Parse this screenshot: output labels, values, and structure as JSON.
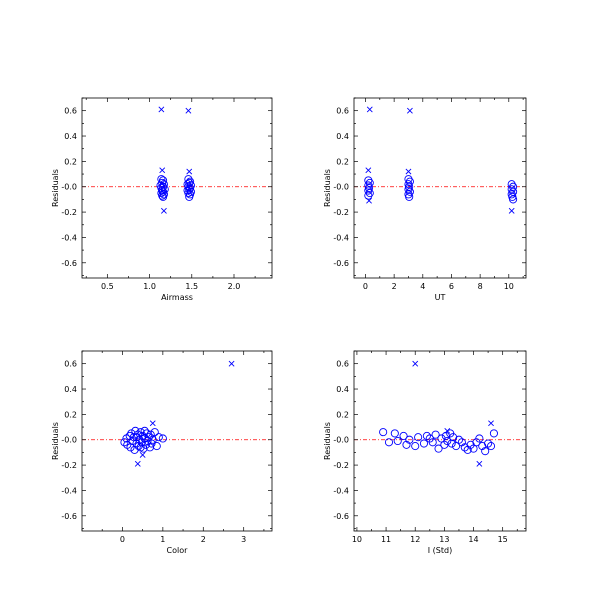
{
  "figure": {
    "background": "#ffffff",
    "marker_color": "#0000ff",
    "zero_line_color": "#ff0000"
  },
  "chart_data": [
    {
      "type": "scatter",
      "xlabel": "Airmass",
      "ylabel": "Residuals",
      "xlim": [
        0.2,
        2.45
      ],
      "ylim": [
        -0.72,
        0.7
      ],
      "xticks": [
        0.5,
        1.0,
        1.5,
        2.0
      ],
      "xtick_labels": [
        "0.5",
        "1.0",
        "1.5",
        "2.0"
      ],
      "yticks": [
        -0.6,
        -0.4,
        -0.2,
        0.0,
        0.2,
        0.4,
        0.6
      ],
      "ytick_labels": [
        "-0.6",
        "-0.4",
        "-0.2",
        "-0.0",
        "0.2",
        "0.4",
        "0.6"
      ],
      "zero_line": 0.0,
      "series": [
        {
          "marker": "circle",
          "points": [
            [
              1.14,
              0.06
            ],
            [
              1.16,
              0.05
            ],
            [
              1.15,
              0.03
            ],
            [
              1.17,
              0.02
            ],
            [
              1.13,
              0.01
            ],
            [
              1.16,
              0.0
            ],
            [
              1.14,
              -0.01
            ],
            [
              1.18,
              -0.02
            ],
            [
              1.15,
              -0.03
            ],
            [
              1.16,
              -0.04
            ],
            [
              1.14,
              -0.05
            ],
            [
              1.17,
              -0.06
            ],
            [
              1.15,
              -0.07
            ],
            [
              1.16,
              -0.08
            ],
            [
              1.46,
              0.06
            ],
            [
              1.48,
              0.04
            ],
            [
              1.47,
              0.03
            ],
            [
              1.45,
              0.02
            ],
            [
              1.49,
              0.01
            ],
            [
              1.46,
              0.0
            ],
            [
              1.48,
              -0.01
            ],
            [
              1.47,
              -0.02
            ],
            [
              1.45,
              -0.03
            ],
            [
              1.49,
              -0.04
            ],
            [
              1.46,
              -0.05
            ],
            [
              1.48,
              -0.06
            ],
            [
              1.47,
              -0.08
            ]
          ]
        },
        {
          "marker": "x",
          "points": [
            [
              1.14,
              0.61
            ],
            [
              1.46,
              0.6
            ],
            [
              1.15,
              0.13
            ],
            [
              1.17,
              -0.19
            ],
            [
              1.47,
              0.12
            ]
          ]
        }
      ]
    },
    {
      "type": "scatter",
      "xlabel": "UT",
      "ylabel": "Residuals",
      "xlim": [
        -0.8,
        11.2
      ],
      "ylim": [
        -0.72,
        0.7
      ],
      "xticks": [
        0,
        2,
        4,
        6,
        8,
        10
      ],
      "xtick_labels": [
        "0",
        "2",
        "4",
        "6",
        "8",
        "10"
      ],
      "yticks": [
        -0.6,
        -0.4,
        -0.2,
        0.0,
        0.2,
        0.4,
        0.6
      ],
      "ytick_labels": [
        "-0.6",
        "-0.4",
        "-0.2",
        "-0.0",
        "0.2",
        "0.4",
        "0.6"
      ],
      "zero_line": 0.0,
      "series": [
        {
          "marker": "circle",
          "points": [
            [
              0.2,
              0.05
            ],
            [
              0.3,
              0.03
            ],
            [
              0.2,
              0.01
            ],
            [
              0.25,
              -0.01
            ],
            [
              0.2,
              -0.03
            ],
            [
              0.3,
              -0.05
            ],
            [
              0.2,
              -0.07
            ],
            [
              3.0,
              0.06
            ],
            [
              3.1,
              0.04
            ],
            [
              3.0,
              0.02
            ],
            [
              3.05,
              0.0
            ],
            [
              3.0,
              -0.02
            ],
            [
              3.1,
              -0.04
            ],
            [
              3.0,
              -0.06
            ],
            [
              3.05,
              -0.08
            ],
            [
              10.2,
              0.02
            ],
            [
              10.3,
              0.0
            ],
            [
              10.2,
              -0.02
            ],
            [
              10.3,
              -0.04
            ],
            [
              10.2,
              -0.06
            ],
            [
              10.25,
              -0.08
            ],
            [
              10.3,
              -0.1
            ]
          ]
        },
        {
          "marker": "x",
          "points": [
            [
              0.3,
              0.61
            ],
            [
              3.1,
              0.6
            ],
            [
              0.2,
              0.13
            ],
            [
              3.0,
              0.12
            ],
            [
              10.2,
              -0.19
            ],
            [
              0.25,
              -0.11
            ]
          ]
        }
      ]
    },
    {
      "type": "scatter",
      "xlabel": "Color",
      "ylabel": "Residuals",
      "xlim": [
        -1.0,
        3.7
      ],
      "ylim": [
        -0.72,
        0.7
      ],
      "xticks": [
        0,
        1,
        2,
        3
      ],
      "xtick_labels": [
        "0",
        "1",
        "2",
        "3"
      ],
      "yticks": [
        -0.6,
        -0.4,
        -0.2,
        0.0,
        0.2,
        0.4,
        0.6
      ],
      "ytick_labels": [
        "-0.6",
        "-0.4",
        "-0.2",
        "-0.0",
        "0.2",
        "0.4",
        "0.6"
      ],
      "zero_line": 0.0,
      "series": [
        {
          "marker": "circle",
          "points": [
            [
              0.05,
              -0.02
            ],
            [
              0.1,
              0.01
            ],
            [
              0.12,
              -0.04
            ],
            [
              0.18,
              0.03
            ],
            [
              0.2,
              -0.06
            ],
            [
              0.22,
              0.05
            ],
            [
              0.25,
              -0.01
            ],
            [
              0.28,
              0.02
            ],
            [
              0.3,
              -0.08
            ],
            [
              0.32,
              0.07
            ],
            [
              0.35,
              -0.03
            ],
            [
              0.38,
              0.04
            ],
            [
              0.4,
              -0.05
            ],
            [
              0.42,
              0.0
            ],
            [
              0.45,
              0.06
            ],
            [
              0.48,
              -0.02
            ],
            [
              0.5,
              0.03
            ],
            [
              0.52,
              -0.07
            ],
            [
              0.55,
              0.01
            ],
            [
              0.58,
              -0.04
            ],
            [
              0.6,
              0.05
            ],
            [
              0.62,
              -0.01
            ],
            [
              0.65,
              0.02
            ],
            [
              0.68,
              -0.06
            ],
            [
              0.7,
              0.04
            ],
            [
              0.72,
              -0.03
            ],
            [
              0.75,
              0.0
            ],
            [
              0.8,
              0.06
            ],
            [
              0.85,
              -0.05
            ],
            [
              0.9,
              0.02
            ],
            [
              1.0,
              0.01
            ],
            [
              0.35,
              0.02
            ],
            [
              0.45,
              -0.06
            ],
            [
              0.55,
              0.07
            ]
          ]
        },
        {
          "marker": "x",
          "points": [
            [
              2.7,
              0.6
            ],
            [
              0.38,
              -0.19
            ],
            [
              0.75,
              0.13
            ],
            [
              0.5,
              -0.12
            ]
          ]
        }
      ]
    },
    {
      "type": "scatter",
      "xlabel": "I (Std)",
      "ylabel": "Residuals",
      "xlim": [
        9.9,
        15.8
      ],
      "ylim": [
        -0.72,
        0.7
      ],
      "xticks": [
        10,
        11,
        12,
        13,
        14,
        15
      ],
      "xtick_labels": [
        "10",
        "11",
        "12",
        "13",
        "14",
        "15"
      ],
      "yticks": [
        -0.6,
        -0.4,
        -0.2,
        0.0,
        0.2,
        0.4,
        0.6
      ],
      "ytick_labels": [
        "-0.6",
        "-0.4",
        "-0.2",
        "-0.0",
        "0.2",
        "0.4",
        "0.6"
      ],
      "zero_line": 0.0,
      "series": [
        {
          "marker": "circle",
          "points": [
            [
              10.9,
              0.06
            ],
            [
              11.1,
              -0.02
            ],
            [
              11.3,
              0.05
            ],
            [
              11.4,
              -0.01
            ],
            [
              11.6,
              0.03
            ],
            [
              11.7,
              -0.04
            ],
            [
              11.8,
              0.0
            ],
            [
              12.0,
              -0.05
            ],
            [
              12.1,
              0.02
            ],
            [
              12.3,
              -0.03
            ],
            [
              12.4,
              0.03
            ],
            [
              12.5,
              0.01
            ],
            [
              12.6,
              -0.02
            ],
            [
              12.7,
              0.04
            ],
            [
              12.8,
              -0.07
            ],
            [
              12.9,
              0.01
            ],
            [
              13.0,
              -0.04
            ],
            [
              13.05,
              0.03
            ],
            [
              13.1,
              -0.01
            ],
            [
              13.2,
              0.05
            ],
            [
              13.25,
              -0.03
            ],
            [
              13.3,
              0.02
            ],
            [
              13.4,
              -0.05
            ],
            [
              13.5,
              0.0
            ],
            [
              13.6,
              -0.02
            ],
            [
              13.7,
              -0.06
            ],
            [
              13.8,
              -0.08
            ],
            [
              13.9,
              -0.04
            ],
            [
              14.0,
              -0.07
            ],
            [
              14.1,
              -0.02
            ],
            [
              14.2,
              0.01
            ],
            [
              14.3,
              -0.05
            ],
            [
              14.4,
              -0.09
            ],
            [
              14.5,
              -0.03
            ],
            [
              14.6,
              -0.05
            ],
            [
              14.7,
              0.05
            ]
          ]
        },
        {
          "marker": "x",
          "points": [
            [
              12.0,
              0.6
            ],
            [
              14.2,
              -0.19
            ],
            [
              14.6,
              0.13
            ],
            [
              13.1,
              0.07
            ]
          ]
        }
      ]
    }
  ]
}
